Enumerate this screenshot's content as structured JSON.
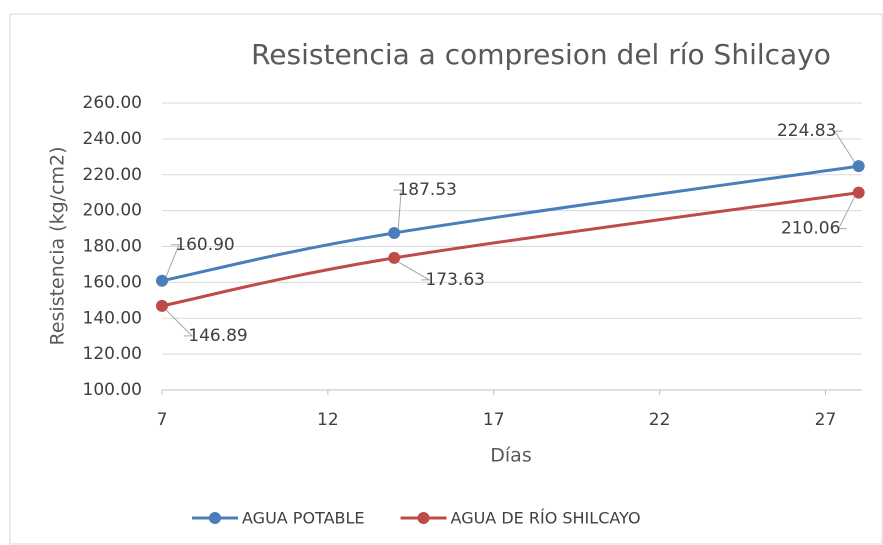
{
  "chart_data": {
    "type": "line",
    "title": "Resistencia a compresion del río Shilcayo",
    "x_label": "Días",
    "y_label": "Resistencia (kg/cm2)",
    "x": [
      7,
      14,
      28
    ],
    "series": [
      {
        "name": "AGUA POTABLE",
        "color": "#4a7ebb",
        "values": [
          160.9,
          187.53,
          224.83
        ],
        "value_labels": [
          "160.90",
          "187.53",
          "224.83"
        ]
      },
      {
        "name": "AGUA DE RÍO SHILCAYO",
        "color": "#be4b48",
        "values": [
          146.89,
          173.63,
          210.06
        ],
        "value_labels": [
          "146.89",
          "173.63",
          "210.06"
        ]
      }
    ],
    "xlim": [
      7,
      28.1
    ],
    "xticks": [
      7,
      12,
      17,
      22,
      27
    ],
    "ylim": [
      100,
      260
    ],
    "yticks": [
      {
        "value": 100,
        "label": "100.00"
      },
      {
        "value": 120,
        "label": "120.00"
      },
      {
        "value": 140,
        "label": "140.00"
      },
      {
        "value": 160,
        "label": "160.00"
      },
      {
        "value": 180,
        "label": "180.00"
      },
      {
        "value": 200,
        "label": "200.00"
      },
      {
        "value": 220,
        "label": "220.00"
      },
      {
        "value": 240,
        "label": "240.00"
      },
      {
        "value": 260,
        "label": "260.00"
      }
    ],
    "grid": true,
    "legend": "bottom"
  }
}
